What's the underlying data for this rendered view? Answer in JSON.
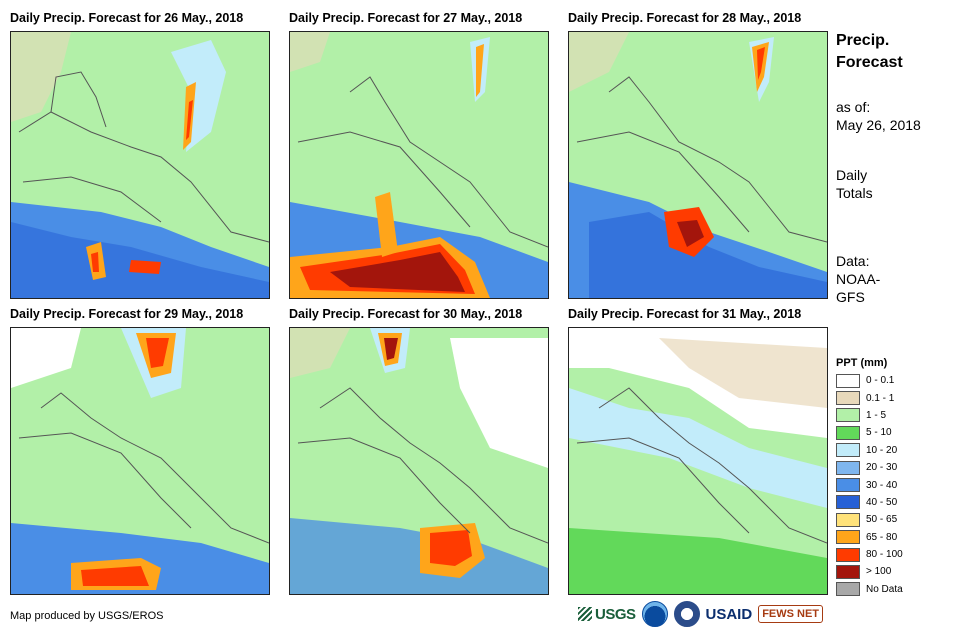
{
  "panels": [
    {
      "title": "Daily Precip. Forecast for 26 May., 2018"
    },
    {
      "title": "Daily Precip. Forecast for 27 May., 2018"
    },
    {
      "title": "Daily Precip. Forecast for 28 May., 2018"
    },
    {
      "title": "Daily Precip. Forecast for 29 May., 2018"
    },
    {
      "title": "Daily Precip. Forecast for 30 May., 2018"
    },
    {
      "title": "Daily Precip. Forecast for 31 May., 2018"
    }
  ],
  "side": {
    "title_line1": "Precip.",
    "title_line2": "Forecast",
    "asof_line1": "as of:",
    "asof_line2": "May 26, 2018",
    "totals_line1": "Daily",
    "totals_line2": "Totals",
    "data_line1": "Data:",
    "data_line2": "NOAA-",
    "data_line3": "GFS"
  },
  "legend": {
    "title": "PPT (mm)",
    "items": [
      {
        "label": "0 - 0.1",
        "color": "#ffffff"
      },
      {
        "label": "0.1 - 1",
        "color": "#e8d9bb"
      },
      {
        "label": "1 - 5",
        "color": "#b2f0a8"
      },
      {
        "label": "5 - 10",
        "color": "#62d95a"
      },
      {
        "label": "10 - 20",
        "color": "#c2ecfa"
      },
      {
        "label": "20 - 30",
        "color": "#7fb6ee"
      },
      {
        "label": "30 - 40",
        "color": "#4a8ee6"
      },
      {
        "label": "40 - 50",
        "color": "#2660d6"
      },
      {
        "label": "50 - 65",
        "color": "#ffe27a"
      },
      {
        "label": "65 - 80",
        "color": "#ffa51a"
      },
      {
        "label": "80 - 100",
        "color": "#ff3b00"
      },
      {
        "label": "> 100",
        "color": "#a3150c"
      },
      {
        "label": "No Data",
        "color": "#a8a8a8"
      }
    ]
  },
  "footer": {
    "credit": "Map produced by USGS/EROS"
  },
  "logos": {
    "usgs": "USGS",
    "usaid": "USAID",
    "fews": "FEWS NET"
  }
}
